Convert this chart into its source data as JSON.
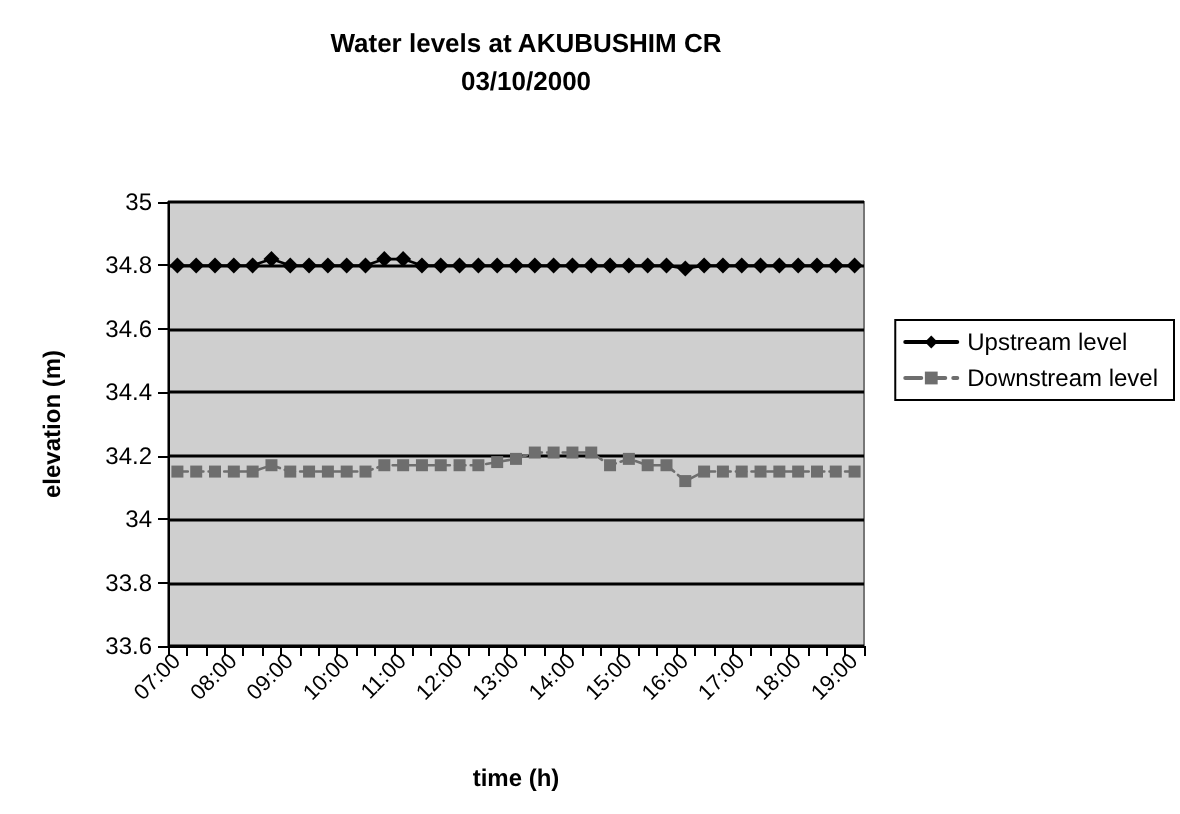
{
  "chart_data": {
    "type": "line",
    "title": "Water levels at AKUBUSHIM CR",
    "subtitle": "03/10/2000",
    "xlabel": "time (h)",
    "ylabel": "elevation (m)",
    "categories": [
      "07:00",
      null,
      null,
      "08:00",
      null,
      null,
      "09:00",
      null,
      null,
      "10:00",
      null,
      null,
      "11:00",
      null,
      null,
      "12:00",
      null,
      null,
      "13:00",
      null,
      null,
      "14:00",
      null,
      null,
      "15:00",
      null,
      null,
      "16:00",
      null,
      null,
      "17:00",
      null,
      null,
      "18:00",
      null,
      null,
      "19:00"
    ],
    "series": [
      {
        "name": "Upstream level",
        "color": "#000000",
        "marker": "diamond",
        "line_style": "solid",
        "values": [
          34.8,
          34.8,
          34.8,
          34.8,
          34.8,
          34.82,
          34.8,
          34.8,
          34.8,
          34.8,
          34.8,
          34.82,
          34.82,
          34.8,
          34.8,
          34.8,
          34.8,
          34.8,
          34.8,
          34.8,
          34.8,
          34.8,
          34.8,
          34.8,
          34.8,
          34.8,
          34.8,
          34.79,
          34.8,
          34.8,
          34.8,
          34.8,
          34.8,
          34.8,
          34.8,
          34.8,
          34.8
        ]
      },
      {
        "name": "Downstream level",
        "color": "#6e6e6e",
        "marker": "square",
        "line_style": "dashed",
        "values": [
          34.15,
          34.15,
          34.15,
          34.15,
          34.15,
          34.17,
          34.15,
          34.15,
          34.15,
          34.15,
          34.15,
          34.17,
          34.17,
          34.17,
          34.17,
          34.17,
          34.17,
          34.18,
          34.19,
          34.21,
          34.21,
          34.21,
          34.21,
          34.17,
          34.19,
          34.17,
          34.17,
          34.12,
          34.15,
          34.15,
          34.15,
          34.15,
          34.15,
          34.15,
          34.15,
          34.15,
          34.15
        ]
      }
    ],
    "ylim": [
      33.6,
      35
    ],
    "yticks": [
      33.6,
      33.8,
      34,
      34.2,
      34.4,
      34.6,
      34.8,
      35
    ],
    "grid": "y",
    "legend": "right"
  }
}
